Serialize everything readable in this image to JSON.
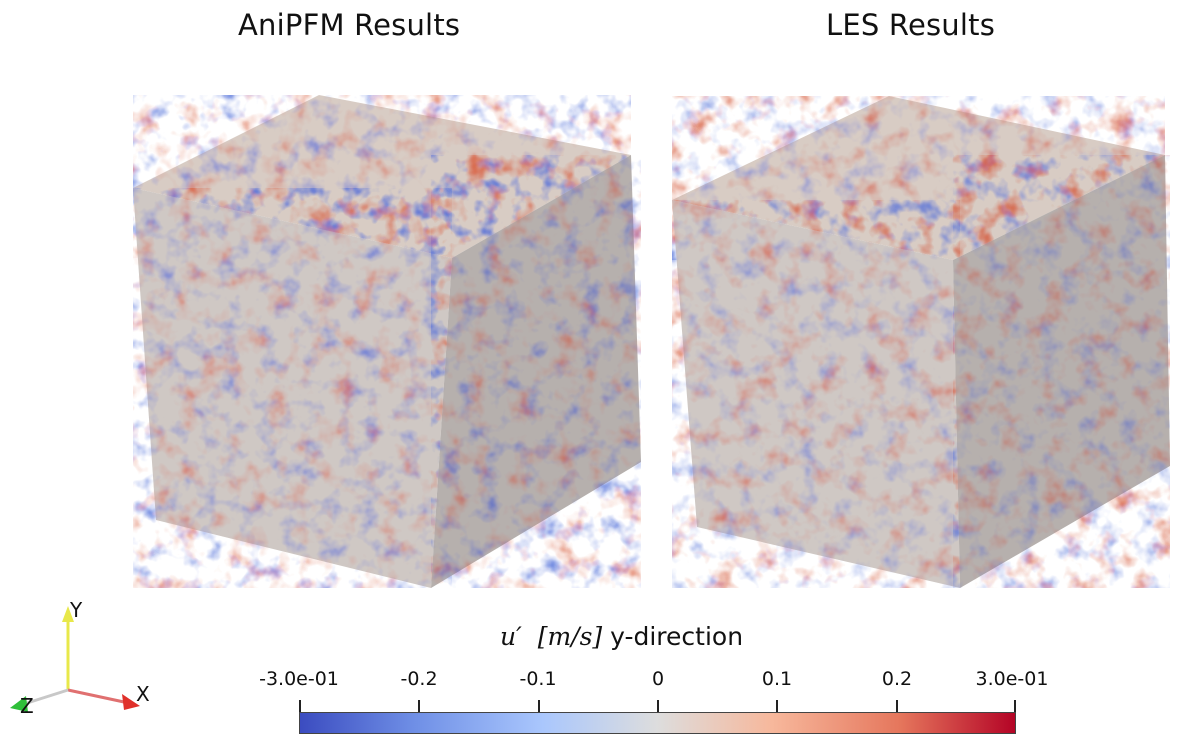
{
  "panels": {
    "left_title": "AniPFM Results",
    "right_title": "LES Results"
  },
  "colorbar": {
    "symbol": "u′",
    "units": "[m/s]",
    "direction": "y-direction",
    "tick_labels": [
      "-3.0e-01",
      "-0.2",
      "-0.1",
      "0",
      "0.1",
      "0.2",
      "3.0e-01"
    ],
    "colormap": "Cool to Warm",
    "color_low": "#3b4cc0",
    "color_mid": "#dddddd",
    "color_high": "#b40426"
  },
  "axes": {
    "x": "X",
    "y": "Y",
    "z": "Z",
    "x_color": "#e0302a",
    "y_color": "#e8e84a",
    "z_color": "#2fbf3a"
  }
}
